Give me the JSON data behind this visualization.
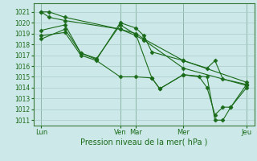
{
  "background_color": "#cde8e8",
  "grid_color": "#aacccc",
  "line_color": "#1a6b1a",
  "title": "Pression niveau de la mer( hPa )",
  "ylim": [
    1010.5,
    1021.8
  ],
  "yticks": [
    1011,
    1012,
    1013,
    1014,
    1015,
    1016,
    1017,
    1018,
    1019,
    1020,
    1021
  ],
  "xlim": [
    0,
    28
  ],
  "day_labels": [
    "Lun",
    "Ven",
    "Mar",
    "Mer",
    "Jeu"
  ],
  "day_x": [
    1,
    11,
    13,
    19,
    27
  ],
  "vline_x": [
    1,
    11,
    13,
    19,
    27
  ],
  "lines": [
    {
      "x": [
        1,
        2,
        4,
        11,
        13,
        14,
        19,
        27
      ],
      "y": [
        1021.0,
        1021.0,
        1020.5,
        1019.4,
        1019.0,
        1018.5,
        1016.5,
        1014.5
      ]
    },
    {
      "x": [
        1,
        2,
        4,
        11,
        13,
        14,
        19,
        27
      ],
      "y": [
        1021.0,
        1020.5,
        1020.2,
        1019.4,
        1018.8,
        1018.4,
        1015.8,
        1014.2
      ]
    },
    {
      "x": [
        1,
        4,
        6,
        8,
        11,
        13,
        14,
        15,
        19,
        22,
        23,
        24,
        27
      ],
      "y": [
        1019.3,
        1019.8,
        1017.2,
        1016.6,
        1020.0,
        1019.5,
        1018.8,
        1017.3,
        1016.5,
        1015.8,
        1016.5,
        1014.8,
        1014.3
      ]
    },
    {
      "x": [
        1,
        4,
        6,
        8,
        11,
        13,
        15,
        16,
        19,
        21,
        22,
        23,
        24,
        25,
        27
      ],
      "y": [
        1018.5,
        1019.4,
        1017.2,
        1016.7,
        1019.8,
        1018.9,
        1014.9,
        1013.9,
        1015.2,
        1015.0,
        1014.0,
        1011.5,
        1012.2,
        1012.2,
        1014.3
      ]
    },
    {
      "x": [
        1,
        4,
        6,
        8,
        11,
        13,
        15,
        16,
        19,
        22,
        23,
        24,
        25,
        27
      ],
      "y": [
        1018.8,
        1019.1,
        1017.0,
        1016.5,
        1015.0,
        1015.0,
        1014.9,
        1013.9,
        1015.2,
        1015.0,
        1011.0,
        1011.0,
        1012.2,
        1014.0
      ]
    }
  ]
}
